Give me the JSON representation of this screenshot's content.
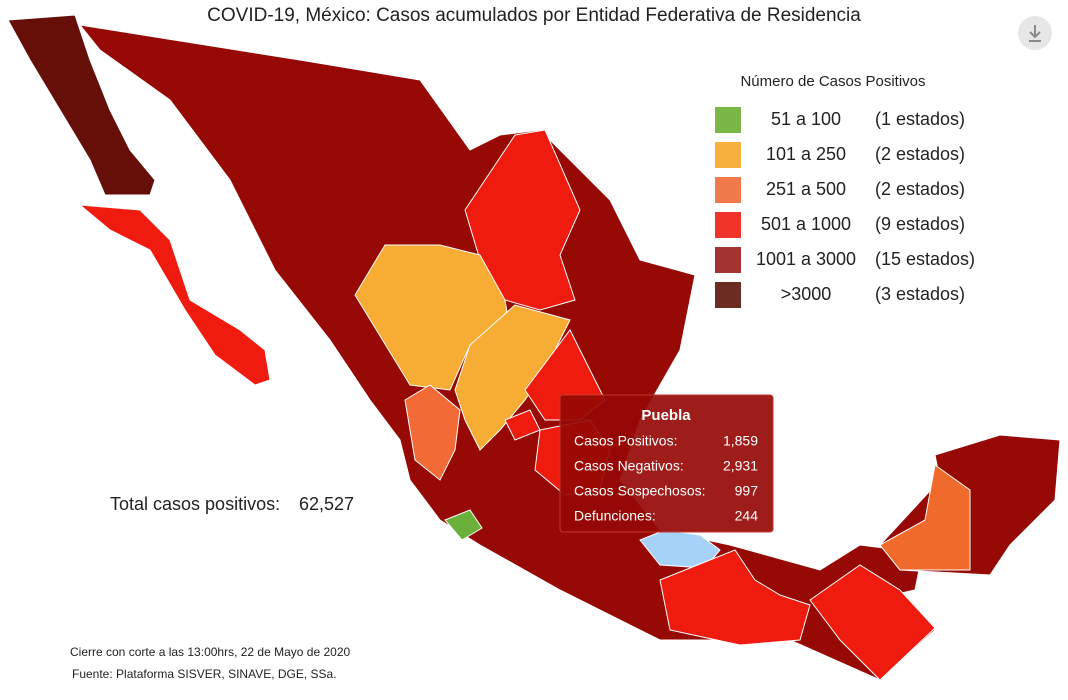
{
  "title": "COVID-19, México: Casos acumulados por Entidad Federativa de Residencia",
  "legend": {
    "title": "Número de Casos Positivos",
    "items": [
      {
        "range": "51 a 100",
        "count": "(1 estados)",
        "color": "#7ab648"
      },
      {
        "range": "101 a 250",
        "count": "(2 estados)",
        "color": "#f8b03e"
      },
      {
        "range": "251 a 500",
        "count": "(2 estados)",
        "color": "#f07a4c"
      },
      {
        "range": "501 a 1000",
        "count": "(9 estados)",
        "color": "#f0342a"
      },
      {
        "range": "1001 a 3000",
        "count": "(15 estados)",
        "color": "#a23330"
      },
      {
        "range": ">3000",
        "count": "(3 estados)",
        "color": "#6b2d22"
      }
    ]
  },
  "total": {
    "label": "Total casos positivos:",
    "value": "62,527"
  },
  "tooltip": {
    "title": "Puebla",
    "rows": [
      [
        "Casos Positivos:",
        "1,859"
      ],
      [
        "Casos Negativos:",
        "2,931"
      ],
      [
        "Casos Sospechosos:",
        "997"
      ],
      [
        "Defunciones:",
        "244"
      ]
    ]
  },
  "footer": [
    "Cierre con corte a las 13:00hrs, 22 de Mayo de 2020",
    "Fuente: Plataforma SISVER, SINAVE, DGE, SSa."
  ]
}
